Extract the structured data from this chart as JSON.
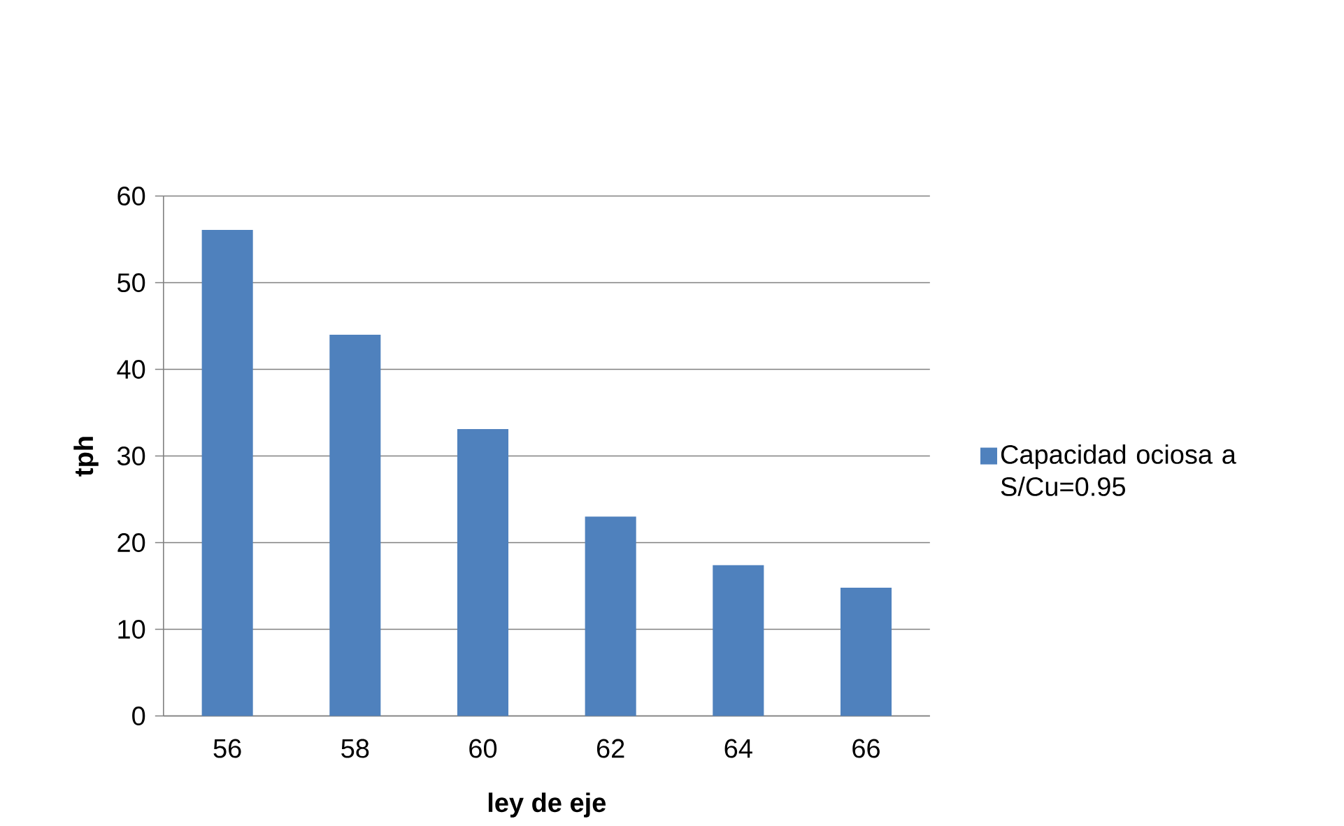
{
  "chart_data": {
    "type": "bar",
    "xlabel": "ley de eje",
    "ylabel": "tph",
    "categories": [
      "56",
      "58",
      "60",
      "62",
      "64",
      "66"
    ],
    "series": [
      {
        "name": "Capacidad ociosa a S/Cu=0.95",
        "color": "#4f81bd",
        "values": [
          56.1,
          44.0,
          33.1,
          23.0,
          17.4,
          14.8
        ]
      }
    ],
    "ylim": [
      0,
      60
    ],
    "yticks": [
      0,
      10,
      20,
      30,
      40,
      50,
      60
    ],
    "grid": "y",
    "legend": "right"
  }
}
